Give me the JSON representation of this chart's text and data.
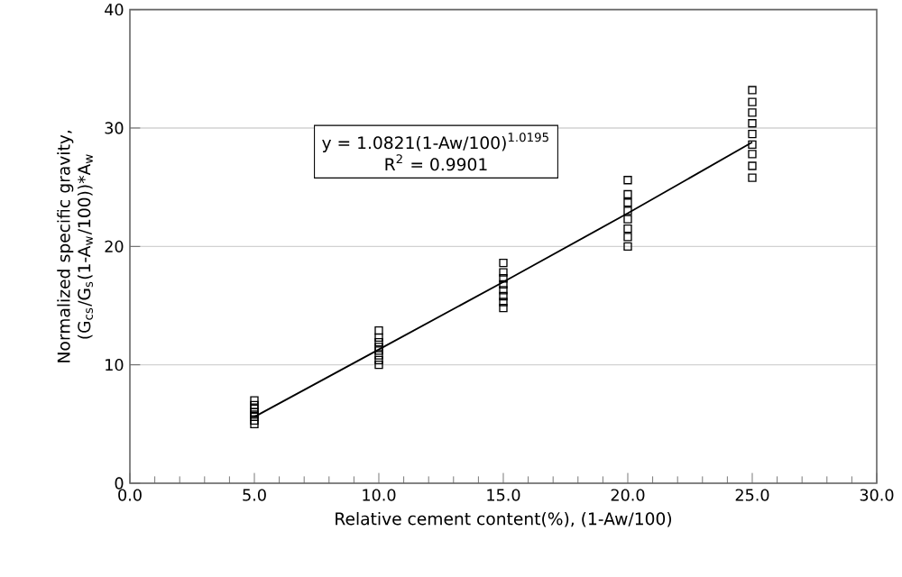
{
  "chart_data": {
    "type": "scatter",
    "xlabel": "Relative cement content(%),  (1-Aw/100)",
    "ylabel": "Normalized specific gravity, (G$_{cs}$/G$_{s}$(1-A$_{w}$/100))*A$_{w}$",
    "annotations": [
      "y = 1.0821(1-Aw/100)$^{1.0195}$",
      "R$^{2}$ = 0.9901"
    ],
    "series": [
      {
        "color": "#000000",
        "marker": "square",
        "x": [
          5,
          5,
          5,
          5,
          5,
          5,
          5,
          5,
          10,
          10,
          10,
          10,
          10,
          10,
          10,
          10,
          15,
          15,
          15,
          15,
          15,
          15,
          15,
          15,
          20,
          20,
          20,
          20,
          20,
          20,
          20,
          20,
          25,
          25,
          25,
          25,
          25,
          25,
          25,
          25,
          25
        ],
        "values": [
          5.0,
          5.3,
          5.6,
          5.8,
          6.0,
          6.3,
          6.6,
          7.0,
          10.0,
          10.4,
          10.8,
          11.2,
          11.5,
          11.9,
          12.3,
          12.9,
          14.8,
          15.3,
          15.8,
          16.3,
          16.8,
          17.3,
          17.8,
          18.6,
          20.0,
          20.8,
          21.5,
          22.3,
          23.0,
          23.7,
          24.4,
          25.6,
          25.8,
          26.8,
          27.8,
          28.6,
          29.5,
          30.4,
          31.3,
          32.2,
          33.2
        ]
      },
      {
        "type": "line",
        "color": "#000000",
        "marker": "none",
        "line_style": "solid",
        "x": [
          5,
          10,
          15,
          20,
          25
        ],
        "values": [
          5.6,
          11.3,
          17.0,
          22.8,
          28.8
        ]
      }
    ],
    "xlim": [
      0,
      30
    ],
    "ylim": [
      0,
      40
    ],
    "xticks": [
      {
        "value": 0,
        "label": "0.0"
      },
      {
        "value": 5,
        "label": "5.0"
      },
      {
        "value": 10,
        "label": "10.0"
      },
      {
        "value": 15,
        "label": "15.0"
      },
      {
        "value": 20,
        "label": "20.0"
      },
      {
        "value": 25,
        "label": "25.0"
      },
      {
        "value": 30,
        "label": "30.0"
      }
    ],
    "yticks": [
      0,
      10,
      20,
      30,
      40
    ],
    "grid": "y"
  }
}
